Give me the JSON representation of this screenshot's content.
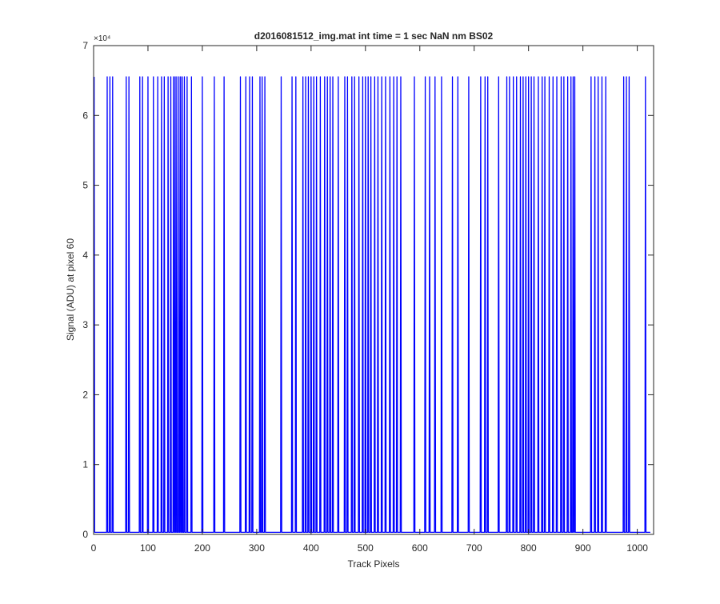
{
  "chart_data": {
    "type": "line",
    "title": "d2016081512_img.mat int time = 1 sec  NaN nm BS02",
    "x_label": "Track Pixels",
    "y_label": "Signal (ADU) at pixel 60",
    "y_multiplier": "×10⁴",
    "xlim": [
      0,
      1030
    ],
    "ylim": [
      0,
      70000
    ],
    "xticks": [
      0,
      100,
      200,
      300,
      400,
      500,
      600,
      700,
      800,
      900,
      1000
    ],
    "yticks": [
      0,
      {
        "value": 10000,
        "label": "1"
      },
      {
        "value": 20000,
        "label": "2"
      },
      {
        "value": 30000,
        "label": "3"
      },
      {
        "value": 40000,
        "label": "4"
      },
      {
        "value": 50000,
        "label": "5"
      },
      {
        "value": 60000,
        "label": "6"
      },
      {
        "value": 70000,
        "label": "7"
      }
    ],
    "grid": false,
    "color": "#0000ff",
    "x": [
      1,
      2,
      24,
      25,
      26,
      29,
      30,
      31,
      34,
      35,
      36,
      59,
      60,
      61,
      64,
      65,
      66,
      84,
      85,
      86,
      89,
      90,
      91,
      99,
      100,
      101,
      109,
      110,
      111,
      117,
      118,
      119,
      124,
      125,
      126,
      129,
      130,
      131,
      136,
      137,
      138,
      141,
      142,
      143,
      146,
      147,
      148,
      149,
      150,
      151,
      152,
      153,
      154,
      156,
      157,
      158,
      159,
      160,
      161,
      162,
      163,
      164,
      166,
      167,
      168,
      171,
      172,
      173,
      179,
      180,
      181,
      199,
      200,
      201,
      221,
      222,
      223,
      239,
      240,
      241,
      269,
      270,
      271,
      279,
      280,
      281,
      286,
      287,
      288,
      291,
      292,
      293,
      305,
      306,
      307,
      309,
      310,
      311,
      314,
      315,
      316,
      344,
      345,
      346,
      364,
      365,
      366,
      371,
      372,
      373,
      384,
      385,
      386,
      389,
      390,
      391,
      394,
      395,
      396,
      399,
      400,
      401,
      404,
      405,
      406,
      409,
      410,
      411,
      416,
      417,
      418,
      424,
      425,
      426,
      429,
      430,
      431,
      434,
      435,
      436,
      439,
      440,
      441,
      449,
      450,
      451,
      461,
      462,
      463,
      466,
      467,
      468,
      474,
      475,
      476,
      479,
      480,
      481,
      487,
      488,
      489,
      494,
      495,
      496,
      499,
      500,
      501,
      504,
      505,
      506,
      509,
      510,
      511,
      516,
      517,
      518,
      522,
      523,
      524,
      529,
      530,
      531,
      536,
      537,
      538,
      544,
      545,
      546,
      551,
      552,
      553,
      557,
      558,
      559,
      564,
      565,
      566,
      589,
      590,
      591,
      609,
      610,
      611,
      617,
      618,
      619,
      627,
      628,
      629,
      639,
      640,
      641,
      659,
      660,
      661,
      669,
      670,
      671,
      689,
      690,
      691,
      711,
      712,
      713,
      719,
      720,
      721,
      724,
      725,
      726,
      744,
      745,
      746,
      759,
      760,
      761,
      764,
      765,
      766,
      771,
      772,
      773,
      777,
      778,
      779,
      784,
      785,
      786,
      789,
      790,
      791,
      794,
      795,
      796,
      799,
      800,
      801,
      804,
      805,
      806,
      809,
      810,
      811,
      817,
      818,
      819,
      824,
      825,
      826,
      829,
      830,
      831,
      837,
      838,
      839,
      844,
      845,
      846,
      851,
      852,
      853,
      859,
      860,
      861,
      864,
      865,
      866,
      871,
      872,
      873,
      877,
      878,
      879,
      881,
      882,
      883,
      884,
      885,
      886,
      914,
      915,
      916,
      921,
      922,
      923,
      927,
      928,
      929,
      934,
      935,
      936,
      941,
      942,
      943,
      974,
      975,
      976,
      979,
      980,
      981,
      984,
      985,
      986,
      1014,
      1015,
      1016,
      1024
    ],
    "values": [
      65535,
      300,
      300,
      65535,
      300,
      300,
      65535,
      300,
      300,
      65535,
      300,
      300,
      65535,
      300,
      300,
      65535,
      300,
      300,
      65535,
      300,
      300,
      65535,
      300,
      300,
      65535,
      300,
      300,
      65535,
      300,
      300,
      65535,
      300,
      300,
      65535,
      300,
      300,
      65535,
      300,
      300,
      65535,
      300,
      300,
      65535,
      300,
      300,
      65535,
      300,
      300,
      65535,
      300,
      300,
      65535,
      300,
      300,
      65535,
      300,
      300,
      65535,
      300,
      300,
      65535,
      300,
      300,
      65535,
      300,
      300,
      65535,
      300,
      300,
      65535,
      300,
      300,
      65535,
      300,
      300,
      65535,
      300,
      300,
      65535,
      300,
      300,
      65535,
      300,
      300,
      65535,
      300,
      300,
      65535,
      300,
      300,
      65535,
      300,
      300,
      65535,
      300,
      300,
      65535,
      300,
      300,
      65535,
      300,
      300,
      65535,
      300,
      300,
      65535,
      300,
      300,
      65535,
      300,
      300,
      65535,
      300,
      300,
      65535,
      300,
      300,
      65535,
      300,
      300,
      65535,
      300,
      300,
      65535,
      300,
      300,
      65535,
      300,
      300,
      65535,
      300,
      300,
      65535,
      300,
      300,
      65535,
      300,
      300,
      65535,
      300,
      300,
      65535,
      300,
      300,
      65535,
      300,
      300,
      65535,
      300,
      300,
      65535,
      300,
      300,
      65535,
      300,
      300,
      65535,
      300,
      300,
      65535,
      300,
      300,
      65535,
      300,
      300,
      65535,
      300,
      300,
      65535,
      300,
      300,
      65535,
      300,
      300,
      65535,
      300,
      300,
      65535,
      300,
      300,
      65535,
      300,
      300,
      65535,
      300,
      300,
      65535,
      300,
      300,
      65535,
      300,
      300,
      65535,
      300,
      300,
      65535,
      300,
      300,
      65535,
      300,
      300,
      65535,
      300,
      300,
      65535,
      300,
      300,
      65535,
      300,
      300,
      65535,
      300,
      300,
      65535,
      300,
      300,
      65535,
      300,
      300,
      65535,
      300,
      300,
      65535,
      300,
      300,
      65535,
      300,
      300,
      65535,
      300,
      300,
      65535,
      300,
      300,
      65535,
      300,
      300,
      65535,
      300,
      300,
      65535,
      300,
      300,
      65535,
      300,
      300,
      65535,
      300,
      300,
      65535,
      300,
      300,
      65535,
      300,
      300,
      65535,
      300,
      300,
      65535,
      300,
      300,
      65535,
      300,
      300,
      65535,
      300,
      300,
      65535,
      300,
      300,
      65535,
      300,
      300,
      65535,
      300,
      300,
      65535,
      300,
      300,
      65535,
      300,
      300,
      65535,
      300,
      300,
      65535,
      300,
      300,
      65535,
      300,
      300,
      65535,
      300,
      300,
      65535,
      300,
      300,
      65535,
      300,
      300,
      65535,
      300,
      300,
      65535,
      300,
      300,
      65535,
      300,
      300,
      65535,
      300,
      300,
      65535,
      300,
      300,
      65535,
      300,
      300,
      65535,
      300,
      300,
      65535,
      300,
      300,
      65535,
      300,
      300
    ]
  }
}
